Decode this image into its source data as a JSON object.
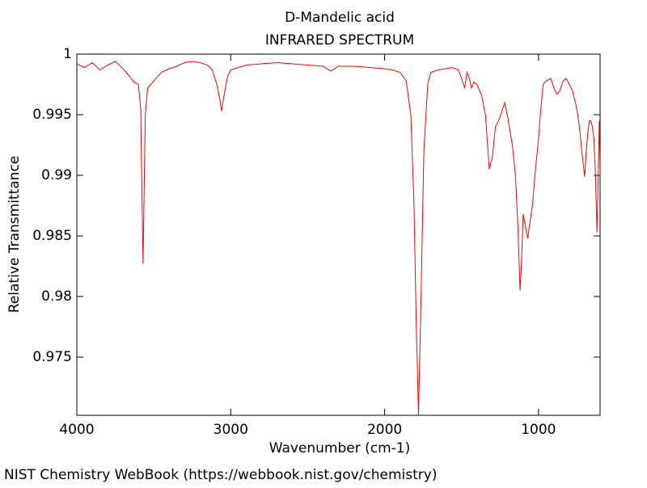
{
  "chart_data": {
    "type": "line",
    "title": "D-Mandelic acid",
    "subtitle": "INFRARED SPECTRUM",
    "x_label": "Wavenumber (cm-1)",
    "y_label": "Relative Transmittance",
    "footer": "NIST Chemistry WebBook (https://webbook.nist.gov/chemistry)",
    "xlim": [
      4000,
      600
    ],
    "ylim": [
      0.9702,
      1
    ],
    "xticks": [
      4000,
      3000,
      2000,
      1000
    ],
    "yticks": [
      1,
      0.995,
      0.99,
      0.985,
      0.98,
      0.975
    ],
    "x": [
      4000,
      3950,
      3900,
      3850,
      3800,
      3750,
      3700,
      3660,
      3630,
      3600,
      3585,
      3570,
      3555,
      3540,
      3500,
      3450,
      3400,
      3350,
      3300,
      3250,
      3200,
      3150,
      3120,
      3090,
      3070,
      3060,
      3045,
      3020,
      3000,
      2950,
      2900,
      2800,
      2700,
      2600,
      2500,
      2400,
      2350,
      2300,
      2200,
      2100,
      2000,
      1950,
      1900,
      1860,
      1830,
      1810,
      1795,
      1780,
      1765,
      1745,
      1720,
      1700,
      1650,
      1600,
      1560,
      1520,
      1500,
      1480,
      1465,
      1450,
      1435,
      1420,
      1400,
      1370,
      1345,
      1320,
      1300,
      1280,
      1260,
      1240,
      1220,
      1200,
      1190,
      1170,
      1150,
      1135,
      1120,
      1110,
      1100,
      1085,
      1070,
      1055,
      1040,
      1020,
      1000,
      985,
      970,
      950,
      920,
      900,
      880,
      860,
      840,
      820,
      800,
      780,
      760,
      745,
      730,
      715,
      700,
      690,
      680,
      670,
      660,
      650,
      640,
      630,
      620,
      612,
      605,
      600
    ],
    "series": [
      {
        "name": "D-Mandelic acid",
        "color": "#ff0000",
        "values": [
          0.9992,
          0.9989,
          0.9993,
          0.9987,
          0.9991,
          0.9994,
          0.9988,
          0.9982,
          0.9977,
          0.9975,
          0.9955,
          0.9827,
          0.995,
          0.9972,
          0.9978,
          0.9985,
          0.9988,
          0.999,
          0.9993,
          0.9994,
          0.9993,
          0.9991,
          0.9987,
          0.9975,
          0.9962,
          0.9953,
          0.9965,
          0.9982,
          0.9987,
          0.9989,
          0.9991,
          0.9992,
          0.9993,
          0.9992,
          0.9991,
          0.999,
          0.9986,
          0.999,
          0.999,
          0.9989,
          0.9988,
          0.9987,
          0.9985,
          0.9978,
          0.995,
          0.988,
          0.978,
          0.9702,
          0.979,
          0.992,
          0.9975,
          0.9985,
          0.9987,
          0.9988,
          0.9989,
          0.9987,
          0.998,
          0.9972,
          0.9985,
          0.998,
          0.9972,
          0.9977,
          0.9975,
          0.9966,
          0.995,
          0.9905,
          0.9915,
          0.994,
          0.9945,
          0.9952,
          0.996,
          0.9948,
          0.994,
          0.9925,
          0.99,
          0.986,
          0.9805,
          0.983,
          0.9868,
          0.9858,
          0.9848,
          0.9862,
          0.9875,
          0.9905,
          0.993,
          0.9955,
          0.9975,
          0.9978,
          0.998,
          0.9972,
          0.9967,
          0.997,
          0.9978,
          0.998,
          0.9975,
          0.997,
          0.996,
          0.995,
          0.9935,
          0.9915,
          0.9899,
          0.992,
          0.9935,
          0.9945,
          0.9945,
          0.994,
          0.993,
          0.99,
          0.9853,
          0.99,
          0.9945,
          0.99
        ]
      }
    ]
  }
}
